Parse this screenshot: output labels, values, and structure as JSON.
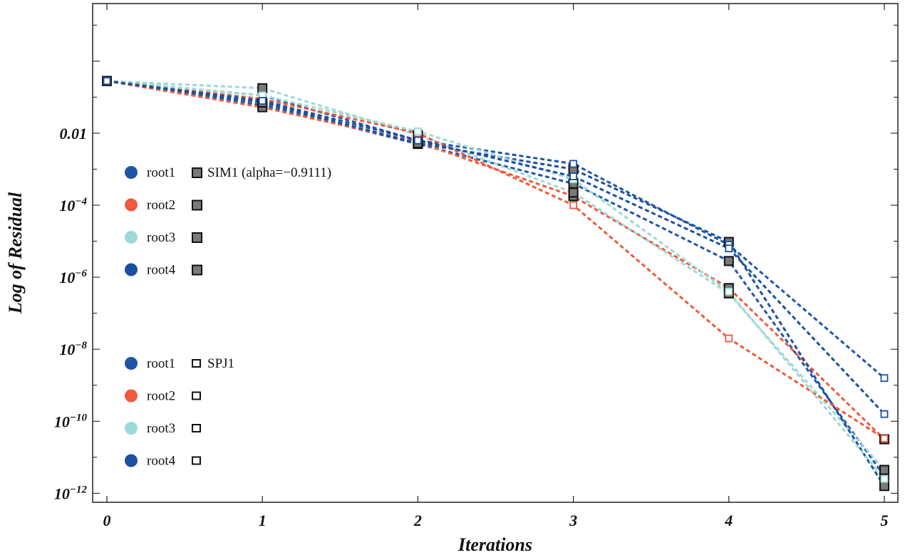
{
  "chart_data": {
    "type": "line",
    "title": "",
    "xlabel": "Iterations",
    "ylabel": "Log of Residual",
    "xlim": [
      0,
      5
    ],
    "ylim_log10": [
      -12.25,
      1.6
    ],
    "y_scale": "log",
    "x_ticks": [
      "0",
      "1",
      "2",
      "3",
      "4",
      "5"
    ],
    "y_ticks": [
      {
        "exp": -2,
        "text": "0.01",
        "base": "",
        "sup": ""
      },
      {
        "exp": -4,
        "text": "",
        "base": "10",
        "sup": "−4"
      },
      {
        "exp": -6,
        "text": "",
        "base": "10",
        "sup": "−6"
      },
      {
        "exp": -8,
        "text": "",
        "base": "10",
        "sup": "−8"
      },
      {
        "exp": -10,
        "text": "",
        "base": "10",
        "sup": "−10"
      },
      {
        "exp": -12,
        "text": "",
        "base": "10",
        "sup": "−12"
      }
    ],
    "colors": {
      "root1": "#1f55a8",
      "root2": "#ee5a3c",
      "root3": "#9dd9d6",
      "root4": "#1c4f9e",
      "sim_marker_fill": "#7a7a7a",
      "sim_marker_edge": "#111111"
    },
    "series": [
      {
        "name": "root1",
        "method": "SIM1",
        "x": [
          0,
          1,
          2,
          3,
          4,
          5
        ],
        "log10_values": [
          -0.55,
          -1.22,
          -2.3,
          -3.4,
          -5.55,
          -11.52
        ]
      },
      {
        "name": "root2",
        "method": "SIM1",
        "x": [
          0,
          1,
          2,
          3,
          4,
          5
        ],
        "log10_values": [
          -0.55,
          -1.28,
          -2.25,
          -3.75,
          -6.3,
          -10.5
        ]
      },
      {
        "name": "root3",
        "method": "SIM1",
        "x": [
          0,
          1,
          2,
          3,
          4,
          5
        ],
        "log10_values": [
          -0.55,
          -0.75,
          -2.05,
          -3.65,
          -6.45,
          -11.35
        ]
      },
      {
        "name": "root4",
        "method": "SIM1",
        "x": [
          0,
          1,
          2,
          3,
          4,
          5
        ],
        "log10_values": [
          -0.55,
          -1.15,
          -2.28,
          -3.0,
          -5.02,
          -11.8
        ]
      },
      {
        "name": "root1",
        "method": "SPJ1",
        "x": [
          0,
          1,
          2,
          3,
          4,
          5
        ],
        "log10_values": [
          -0.55,
          -0.95,
          -2.2,
          -2.85,
          -5.1,
          -8.8
        ]
      },
      {
        "name": "root2",
        "method": "SPJ1",
        "x": [
          0,
          1,
          2,
          3,
          4,
          5
        ],
        "log10_values": [
          -0.55,
          -1.05,
          -2.0,
          -4.0,
          -7.7,
          -10.48
        ]
      },
      {
        "name": "root3",
        "method": "SPJ1",
        "x": [
          0,
          1,
          2,
          3,
          4,
          5
        ],
        "log10_values": [
          -0.55,
          -0.95,
          -1.95,
          -3.28,
          -6.4,
          -11.6
        ]
      },
      {
        "name": "root4",
        "method": "SPJ1",
        "x": [
          0,
          1,
          2,
          3,
          4,
          5
        ],
        "log10_values": [
          -0.55,
          -1.1,
          -2.2,
          -3.2,
          -5.2,
          -9.8
        ]
      }
    ],
    "legend_groups": [
      {
        "method": "SIM1",
        "caption": "SIM1 (alpha=−0.9111)",
        "marker": "filled-square",
        "entries": [
          {
            "label": "root1",
            "color_key": "root1"
          },
          {
            "label": "root2",
            "color_key": "root2"
          },
          {
            "label": "root3",
            "color_key": "root3"
          },
          {
            "label": "root4",
            "color_key": "root4"
          }
        ]
      },
      {
        "method": "SPJ1",
        "caption": "SPJ1",
        "marker": "open-square",
        "entries": [
          {
            "label": "root1",
            "color_key": "root1"
          },
          {
            "label": "root2",
            "color_key": "root2"
          },
          {
            "label": "root3",
            "color_key": "root3"
          },
          {
            "label": "root4",
            "color_key": "root4"
          }
        ]
      }
    ],
    "legend_position": "left"
  }
}
